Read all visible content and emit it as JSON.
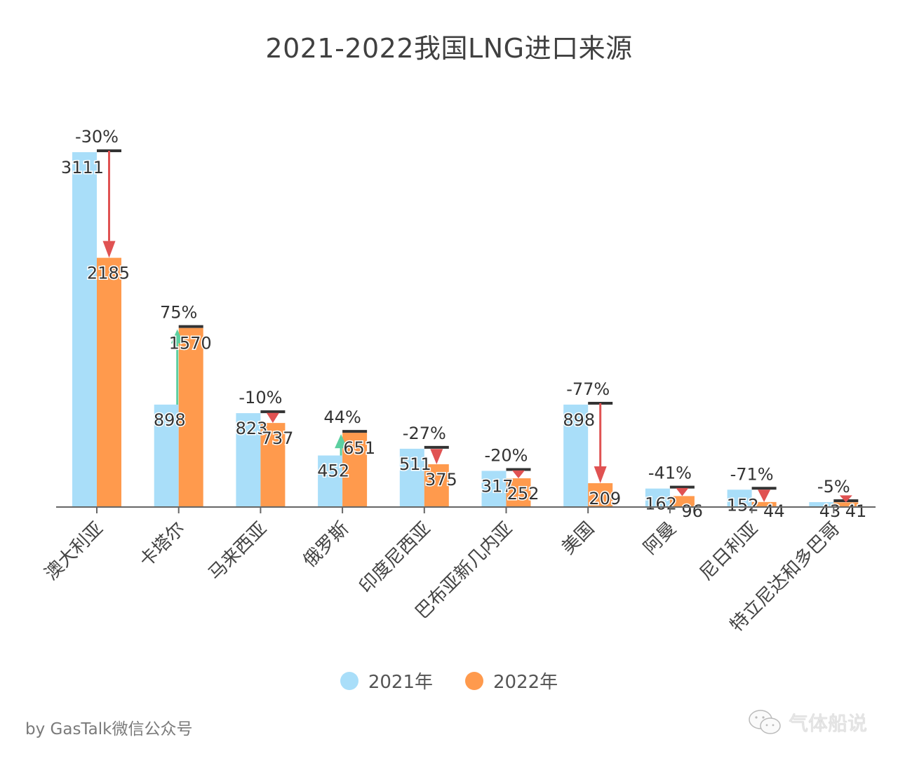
{
  "chart_data": {
    "type": "bar",
    "title": "2021-2022我国LNG进口来源",
    "xlabel": "",
    "ylabel": "",
    "ylim": [
      0,
      3111
    ],
    "grid": false,
    "legend_position": "bottom-center",
    "categories": [
      "澳大利亚",
      "卡塔尔",
      "马来西亚",
      "俄罗斯",
      "印度尼西亚",
      "巴布亚新几内亚",
      "美国",
      "阿曼",
      "尼日利亚",
      "特立尼达和多巴哥"
    ],
    "series": [
      {
        "name": "2021年",
        "color": "#a9def9",
        "values": [
          3111,
          898,
          823,
          452,
          511,
          317,
          898,
          162,
          152,
          43
        ]
      },
      {
        "name": "2022年",
        "color": "#ff9a4d",
        "values": [
          2185,
          1570,
          737,
          651,
          375,
          252,
          209,
          96,
          44,
          41
        ]
      }
    ],
    "change_labels": [
      "-30%",
      "75%",
      "-10%",
      "44%",
      "-27%",
      "-20%",
      "-77%",
      "-41%",
      "-71%",
      "-5%"
    ],
    "change_colors": {
      "increase": "#5ccfa0",
      "decrease": "#e05252",
      "marker": "#333333"
    }
  },
  "legend": {
    "items": [
      {
        "label": "2021年",
        "color": "#a9def9"
      },
      {
        "label": "2022年",
        "color": "#ff9a4d"
      }
    ]
  },
  "footer": {
    "credit": "by GasTalk微信公众号",
    "watermark": "气体船说",
    "watermark_icon": "wechat-icon"
  }
}
